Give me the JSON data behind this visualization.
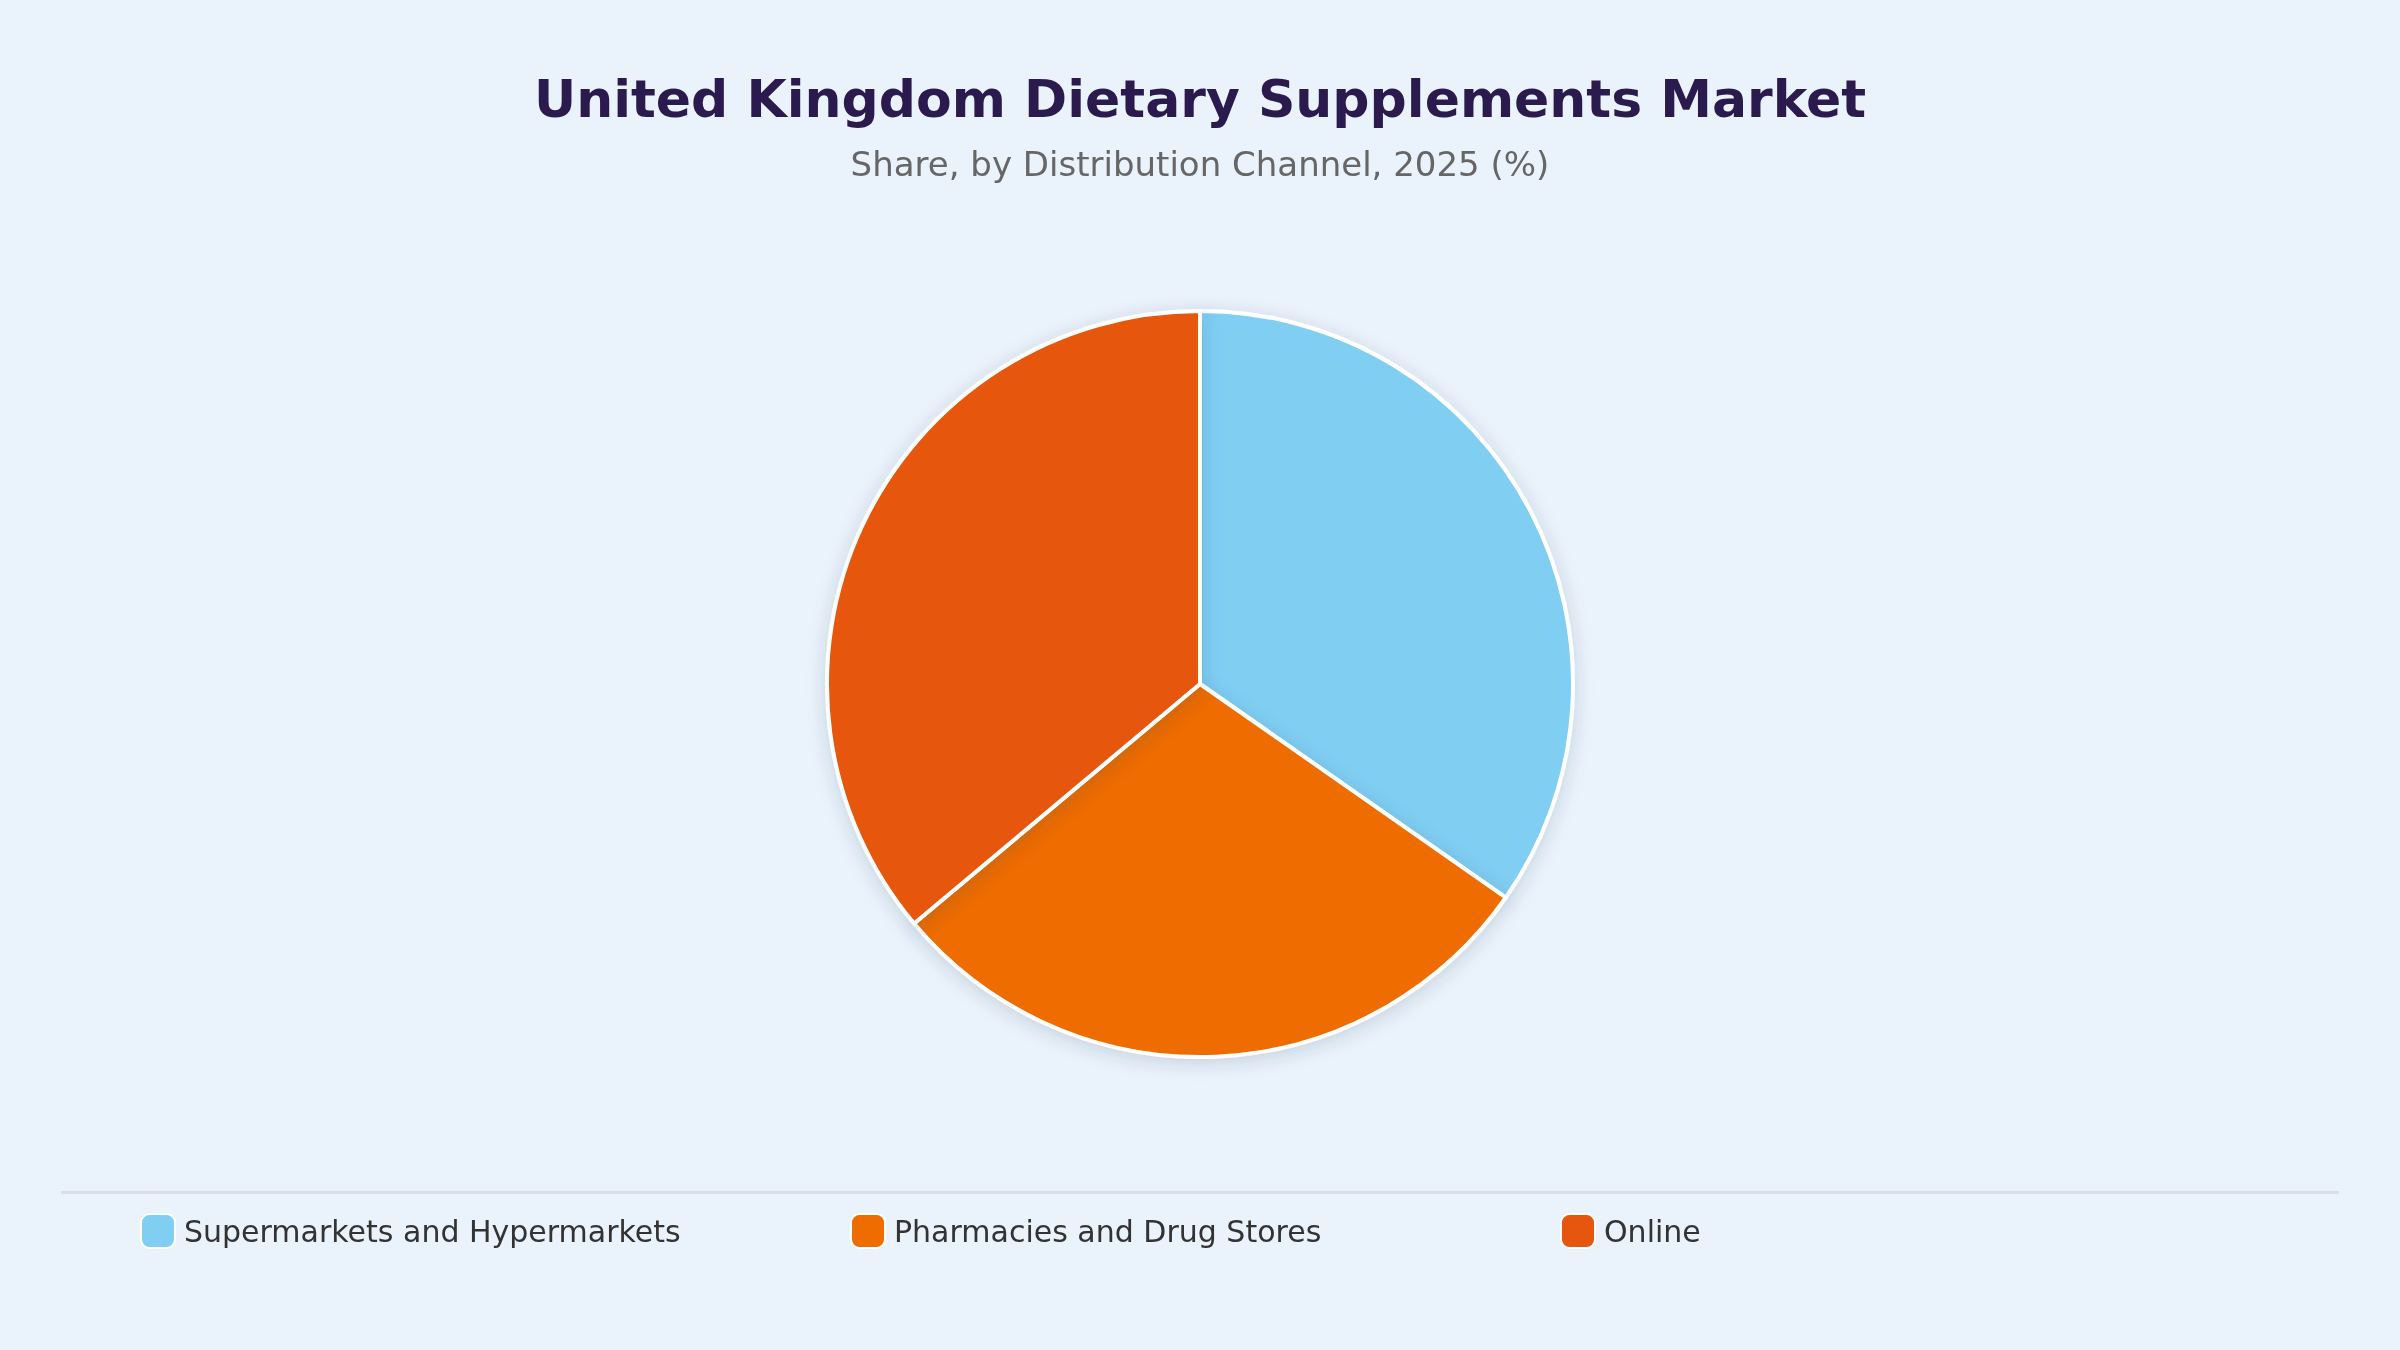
{
  "chart_data": {
    "type": "pie",
    "title": "United Kingdom Dietary Supplements Market",
    "subtitle": "Share, by Distribution Channel, 2025 (%)",
    "categories": [
      "Supermarkets and Hypermarkets",
      "Pharmacies and Drug Stores",
      "Online"
    ],
    "values": [
      34.7,
      29.2,
      36.1
    ],
    "colors": [
      "#80cef2",
      "#ee6c00",
      "#e6560e"
    ],
    "legend": "bottom"
  }
}
